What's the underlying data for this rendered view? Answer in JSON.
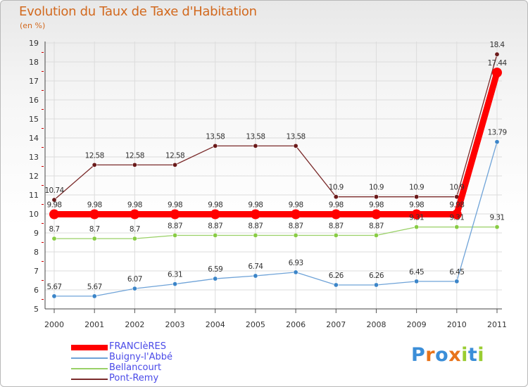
{
  "title": "Evolution du Taux de Taxe d'Habitation",
  "subtitle": "(en %)",
  "logo": {
    "text": "Proxiti",
    "letters": [
      "P",
      "r",
      "o",
      "x",
      "i",
      "t",
      "i"
    ],
    "colors": [
      "#3b8ed8",
      "#e8731a",
      "#3b8ed8",
      "#e8731a",
      "#9acd32",
      "#3b8ed8",
      "#9acd32"
    ]
  },
  "chart_data": {
    "type": "line",
    "title": "Evolution du Taux de Taxe d'Habitation",
    "ylabel": "(en %)",
    "xlabel": "",
    "ylim": [
      5,
      19
    ],
    "yticks": [
      "5",
      "6",
      "7",
      "8",
      "9",
      "10",
      "11",
      "12",
      "13",
      "14",
      "15",
      "16",
      "17",
      "18",
      "19"
    ],
    "categories": [
      "2000",
      "2001",
      "2002",
      "2003",
      "2004",
      "2005",
      "2006",
      "2007",
      "2008",
      "2009",
      "2010",
      "2011"
    ],
    "grid": true,
    "legend": "bottom-left",
    "series": [
      {
        "name": "Pont-Remy",
        "color": "#7a2a2a",
        "marker": "#6b1a1a",
        "values": [
          10.74,
          12.58,
          12.58,
          12.58,
          13.58,
          13.58,
          13.58,
          10.9,
          10.9,
          10.9,
          10.9,
          18.4
        ],
        "labels": [
          "10.74",
          "12.58",
          "12.58",
          "12.58",
          "13.58",
          "13.58",
          "13.58",
          "10.9",
          "10.9",
          "10.9",
          "10.9",
          "18.4"
        ]
      },
      {
        "name": "Bellancourt",
        "color": "#99d066",
        "marker": "#88cc44",
        "values": [
          8.7,
          8.7,
          8.7,
          8.87,
          8.87,
          8.87,
          8.87,
          8.87,
          8.87,
          9.31,
          9.31,
          9.31
        ],
        "labels": [
          "8.7",
          "8.7",
          "8.7",
          "8.87",
          "8.87",
          "8.87",
          "8.87",
          "8.87",
          "8.87",
          "9.31",
          "9.31",
          "9.31"
        ]
      },
      {
        "name": "Buigny-l'Abbé",
        "color": "#6fa3d8",
        "marker": "#3c85c8",
        "values": [
          5.67,
          5.67,
          6.07,
          6.31,
          6.59,
          6.74,
          6.93,
          6.26,
          6.26,
          6.45,
          6.45,
          13.79
        ],
        "labels": [
          "5.67",
          "5.67",
          "6.07",
          "6.31",
          "6.59",
          "6.74",
          "6.93",
          "6.26",
          "6.26",
          "6.45",
          "6.45",
          "13.79"
        ]
      },
      {
        "name": "FRANCIèRES",
        "color": "#ff0000",
        "marker": "#ff0000",
        "values": [
          9.98,
          9.98,
          9.98,
          9.98,
          9.98,
          9.98,
          9.98,
          9.98,
          9.98,
          9.98,
          9.98,
          17.44
        ],
        "labels": [
          "9.98",
          "9.98",
          "9.98",
          "9.98",
          "9.98",
          "9.98",
          "9.98",
          "9.98",
          "9.98",
          "9.98",
          "9.98",
          "17.44"
        ]
      }
    ],
    "legend_entries": [
      "FRANCIèRES",
      "Buigny-l'Abbé",
      "Bellancourt",
      "Pont-Remy"
    ]
  }
}
